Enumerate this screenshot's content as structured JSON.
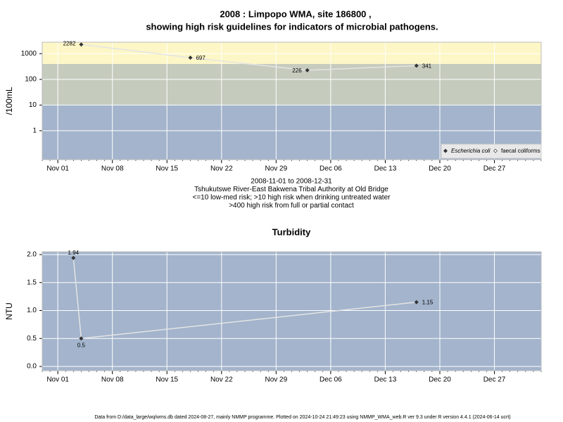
{
  "chart_data": [
    {
      "type": "line",
      "title": "2008 : Limpopo WMA, site 186800 ,",
      "subtitle": "showing high risk guidelines for indicators of microbial pathogens.",
      "y_label": "/100mL",
      "log_y": true,
      "x": [
        "Nov 04",
        "Nov 18",
        "Dec 03",
        "Dec 17"
      ],
      "series": [
        {
          "name": "Escherichia coli",
          "color": "#333333",
          "values": [
            2282,
            697,
            226,
            341
          ]
        },
        {
          "name": "faecal coliforms",
          "color": "#333333",
          "values": [
            null,
            null,
            null,
            null
          ]
        }
      ],
      "xlim": [
        "Oct 30",
        "Jan 02"
      ],
      "xticks": [
        "Nov 01",
        "Nov 08",
        "Nov 15",
        "Nov 22",
        "Nov 29",
        "Dec 06",
        "Dec 13",
        "Dec 20",
        "Dec 27"
      ],
      "ylim": [
        0.075,
        2800
      ],
      "yticks": [
        1,
        10,
        100,
        1000
      ],
      "band_breaks": [
        10,
        400
      ],
      "band_colors": [
        "#a3b4cc",
        "#c5cbbd",
        "#fdf6c6"
      ],
      "grid": true,
      "legend": "bottom-right",
      "notes": [
        "2008-11-01 to 2008-12-31",
        "Tshukutswe River-East Bakwena Tribal Authority at Old Bridge",
        "<=10 low-med risk; >10 high risk when drinking untreated water",
        ">400 high risk from full or partial contact"
      ]
    },
    {
      "type": "line",
      "title": "Turbidity",
      "y_label": "NTU",
      "x": [
        "Nov 03",
        "Nov 04",
        "Dec 17"
      ],
      "series": [
        {
          "name": "Turbidity",
          "color": "#333333",
          "values": [
            1.94,
            0.5,
            1.15
          ]
        }
      ],
      "xlim": [
        "Oct 30",
        "Jan 02"
      ],
      "xticks": [
        "Nov 01",
        "Nov 08",
        "Nov 15",
        "Nov 22",
        "Nov 29",
        "Dec 06",
        "Dec 13",
        "Dec 20",
        "Dec 27"
      ],
      "ylim": [
        -0.075,
        2.05
      ],
      "yticks": [
        {
          "value": 0,
          "label": "0.0"
        },
        {
          "value": 0.5,
          "label": "0.5"
        },
        {
          "value": 1,
          "label": "1.0"
        },
        {
          "value": 1.5,
          "label": "1.5"
        },
        {
          "value": 2,
          "label": "2.0"
        }
      ],
      "band_colors": [
        "#a3b4cc"
      ],
      "grid": true
    }
  ],
  "footer": "Data from D:/data_large/wq/wms.db dated 2024-08-27, mainly NMMP programme. Plotted on 2024-10-24 21:49:23 using NMMP_WMA_web.R ver 9.3 under R version 4.4.1 (2024-06-14 ucrt)"
}
